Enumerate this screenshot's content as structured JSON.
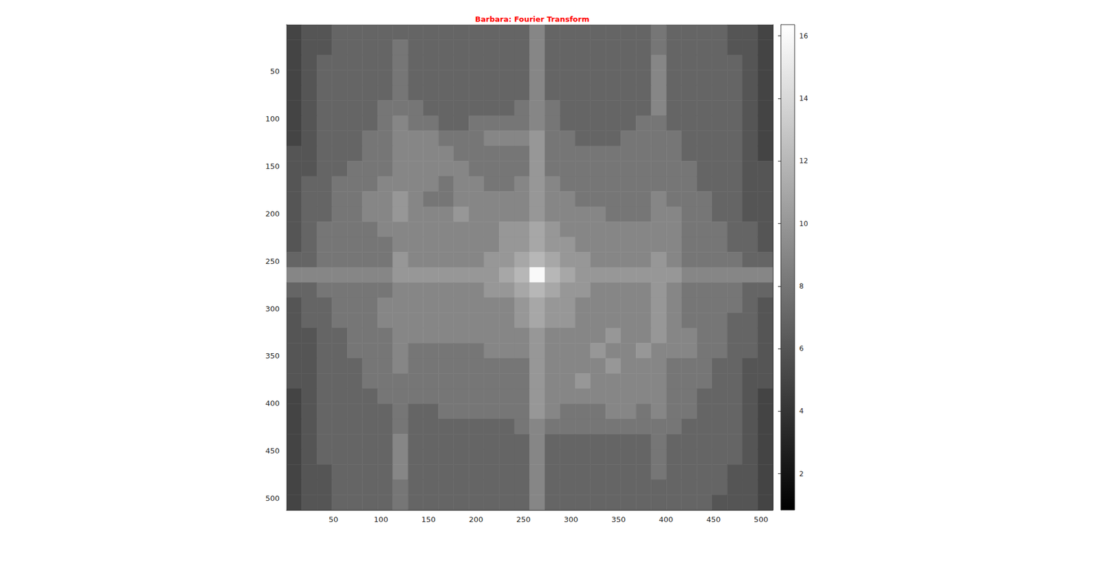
{
  "chart_data": {
    "type": "heatmap",
    "title": "Barbara: Fourier Transform",
    "color": "gray",
    "xlim": [
      0.5,
      512.5
    ],
    "ylim": [
      0.5,
      512.5
    ],
    "xticks": [
      50,
      100,
      150,
      200,
      250,
      300,
      350,
      400,
      450,
      500
    ],
    "yticks": [
      50,
      100,
      150,
      200,
      250,
      300,
      350,
      400,
      450,
      500
    ],
    "x_bins": [
      0.5,
      16.5,
      32.5,
      48.5,
      64.5,
      80.5,
      96.5,
      112.5,
      128.5,
      144.5,
      160.5,
      176.5,
      192.5,
      208.5,
      224.5,
      240.5,
      256.5,
      272.5,
      288.5,
      304.5,
      320.5,
      336.5,
      352.5,
      368.5,
      384.5,
      400.5,
      416.5,
      432.5,
      448.5,
      464.5,
      480.5,
      496.5,
      512.5
    ],
    "y_bins": [
      0.5,
      16.5,
      32.5,
      48.5,
      64.5,
      80.5,
      96.5,
      112.5,
      128.5,
      144.5,
      160.5,
      176.5,
      192.5,
      208.5,
      224.5,
      240.5,
      256.5,
      272.5,
      288.5,
      304.5,
      320.5,
      336.5,
      352.5,
      368.5,
      384.5,
      400.5,
      416.5,
      432.5,
      448.5,
      464.5,
      480.5,
      496.5,
      512.5
    ],
    "color_range": [
      0.84,
      16.36
    ],
    "color_ticks": [
      2,
      4,
      6,
      8,
      10,
      12,
      14,
      16
    ],
    "cells": [
      [
        5,
        6,
        6,
        7,
        7,
        7,
        7,
        7,
        7,
        7,
        7,
        7,
        7,
        7,
        7,
        7,
        9,
        7,
        7,
        7,
        7,
        7,
        7,
        7,
        8,
        7,
        7,
        7,
        7,
        6,
        6,
        5
      ],
      [
        5,
        6,
        6,
        7,
        7,
        7,
        7,
        8,
        7,
        7,
        7,
        7,
        7,
        7,
        7,
        7,
        9,
        7,
        7,
        7,
        7,
        7,
        7,
        7,
        8,
        7,
        7,
        7,
        7,
        6,
        6,
        5
      ],
      [
        5,
        6,
        7,
        7,
        7,
        7,
        7,
        8,
        7,
        7,
        7,
        7,
        7,
        7,
        7,
        7,
        9,
        7,
        7,
        7,
        7,
        7,
        7,
        7,
        9,
        7,
        7,
        7,
        7,
        7,
        6,
        5
      ],
      [
        5,
        6,
        7,
        7,
        7,
        7,
        7,
        8,
        7,
        7,
        7,
        7,
        7,
        7,
        7,
        7,
        9,
        7,
        7,
        7,
        7,
        7,
        7,
        7,
        9,
        7,
        7,
        7,
        7,
        7,
        6,
        5
      ],
      [
        5,
        6,
        7,
        7,
        7,
        7,
        7,
        8,
        7,
        7,
        7,
        7,
        7,
        7,
        7,
        7,
        9,
        7,
        7,
        7,
        7,
        7,
        7,
        7,
        9,
        7,
        7,
        7,
        7,
        7,
        6,
        5
      ],
      [
        5,
        6,
        7,
        7,
        7,
        7,
        8,
        8,
        8,
        7,
        7,
        7,
        7,
        7,
        7,
        8,
        9,
        8,
        7,
        7,
        7,
        7,
        7,
        7,
        9,
        7,
        7,
        7,
        7,
        7,
        6,
        5
      ],
      [
        5,
        6,
        7,
        7,
        7,
        7,
        8,
        9,
        8,
        8,
        7,
        7,
        8,
        8,
        8,
        8,
        9,
        8,
        7,
        7,
        7,
        7,
        7,
        8,
        8,
        7,
        7,
        7,
        7,
        7,
        6,
        5
      ],
      [
        5,
        6,
        7,
        7,
        7,
        8,
        8,
        9,
        9,
        9,
        8,
        8,
        8,
        9,
        9,
        9,
        10,
        8,
        8,
        7,
        7,
        7,
        8,
        8,
        8,
        8,
        7,
        7,
        7,
        7,
        6,
        5
      ],
      [
        6,
        6,
        7,
        7,
        7,
        8,
        8,
        9,
        9,
        9,
        9,
        8,
        8,
        8,
        8,
        8,
        10,
        8,
        8,
        8,
        8,
        8,
        8,
        8,
        8,
        8,
        7,
        7,
        7,
        7,
        6,
        5
      ],
      [
        6,
        6,
        7,
        7,
        8,
        8,
        8,
        9,
        9,
        9,
        9,
        9,
        8,
        8,
        8,
        8,
        10,
        8,
        8,
        8,
        8,
        8,
        8,
        8,
        8,
        8,
        8,
        7,
        7,
        7,
        6,
        6
      ],
      [
        6,
        7,
        7,
        8,
        8,
        8,
        9,
        9,
        9,
        9,
        8,
        9,
        9,
        8,
        8,
        9,
        10,
        9,
        8,
        8,
        8,
        8,
        8,
        8,
        8,
        8,
        8,
        7,
        7,
        7,
        6,
        6
      ],
      [
        6,
        7,
        7,
        8,
        8,
        9,
        9,
        10,
        9,
        8,
        8,
        9,
        9,
        9,
        9,
        9,
        10,
        9,
        9,
        8,
        8,
        8,
        8,
        8,
        9,
        8,
        8,
        8,
        7,
        7,
        6,
        6
      ],
      [
        6,
        7,
        7,
        8,
        8,
        9,
        9,
        10,
        9,
        9,
        9,
        10,
        9,
        9,
        9,
        9,
        10,
        9,
        9,
        9,
        9,
        8,
        8,
        8,
        9,
        9,
        8,
        8,
        7,
        7,
        6,
        6
      ],
      [
        6,
        7,
        8,
        8,
        8,
        8,
        9,
        9,
        9,
        9,
        9,
        9,
        9,
        9,
        10,
        10,
        11,
        10,
        9,
        9,
        9,
        9,
        9,
        9,
        9,
        9,
        8,
        8,
        8,
        7,
        7,
        6
      ],
      [
        6,
        7,
        8,
        8,
        8,
        8,
        8,
        9,
        9,
        9,
        9,
        9,
        9,
        9,
        10,
        10,
        11,
        10,
        10,
        9,
        9,
        9,
        9,
        9,
        9,
        9,
        8,
        8,
        8,
        7,
        7,
        6
      ],
      [
        7,
        7,
        8,
        8,
        8,
        8,
        8,
        10,
        9,
        9,
        9,
        9,
        9,
        10,
        10,
        11,
        12,
        11,
        10,
        10,
        9,
        9,
        9,
        9,
        10,
        9,
        8,
        8,
        8,
        8,
        7,
        7
      ],
      [
        9,
        9,
        9,
        9,
        9,
        9,
        9,
        10,
        10,
        10,
        10,
        10,
        10,
        10,
        11,
        12,
        16,
        12,
        11,
        10,
        10,
        10,
        10,
        10,
        10,
        10,
        9,
        9,
        9,
        9,
        9,
        9
      ],
      [
        7,
        7,
        8,
        8,
        8,
        8,
        8,
        9,
        9,
        9,
        9,
        9,
        9,
        10,
        10,
        11,
        12,
        11,
        10,
        10,
        9,
        9,
        9,
        9,
        10,
        9,
        8,
        8,
        8,
        8,
        7,
        7
      ],
      [
        6,
        7,
        7,
        8,
        8,
        8,
        9,
        9,
        9,
        9,
        9,
        9,
        9,
        9,
        9,
        10,
        11,
        10,
        10,
        9,
        9,
        9,
        9,
        9,
        10,
        9,
        8,
        8,
        8,
        8,
        7,
        6
      ],
      [
        6,
        7,
        7,
        8,
        8,
        8,
        9,
        9,
        9,
        9,
        9,
        9,
        9,
        9,
        9,
        10,
        11,
        10,
        10,
        9,
        9,
        9,
        9,
        9,
        10,
        9,
        8,
        8,
        8,
        7,
        7,
        6
      ],
      [
        6,
        6,
        7,
        7,
        8,
        8,
        8,
        9,
        9,
        9,
        9,
        9,
        9,
        9,
        9,
        9,
        10,
        9,
        9,
        9,
        9,
        10,
        9,
        9,
        10,
        9,
        9,
        8,
        8,
        7,
        7,
        6
      ],
      [
        6,
        6,
        7,
        7,
        8,
        8,
        8,
        9,
        8,
        8,
        8,
        8,
        8,
        9,
        9,
        9,
        10,
        9,
        9,
        9,
        10,
        9,
        9,
        10,
        9,
        9,
        9,
        8,
        8,
        7,
        7,
        6
      ],
      [
        6,
        6,
        7,
        7,
        7,
        8,
        8,
        9,
        8,
        8,
        8,
        8,
        8,
        8,
        8,
        8,
        10,
        9,
        9,
        9,
        9,
        10,
        9,
        9,
        9,
        8,
        8,
        8,
        7,
        7,
        6,
        6
      ],
      [
        6,
        6,
        7,
        7,
        7,
        8,
        8,
        8,
        8,
        8,
        8,
        8,
        8,
        8,
        8,
        8,
        10,
        9,
        9,
        10,
        9,
        9,
        9,
        9,
        9,
        8,
        8,
        8,
        7,
        7,
        6,
        6
      ],
      [
        5,
        6,
        7,
        7,
        7,
        7,
        8,
        8,
        8,
        8,
        8,
        8,
        8,
        8,
        8,
        8,
        10,
        9,
        9,
        9,
        9,
        9,
        9,
        9,
        9,
        8,
        8,
        7,
        7,
        7,
        6,
        5
      ],
      [
        5,
        6,
        7,
        7,
        7,
        7,
        7,
        8,
        7,
        7,
        8,
        8,
        8,
        8,
        8,
        8,
        10,
        9,
        8,
        8,
        8,
        9,
        9,
        8,
        9,
        8,
        8,
        7,
        7,
        7,
        6,
        5
      ],
      [
        5,
        6,
        7,
        7,
        7,
        7,
        7,
        8,
        7,
        7,
        7,
        7,
        7,
        7,
        7,
        8,
        9,
        8,
        8,
        8,
        8,
        8,
        8,
        8,
        8,
        8,
        7,
        7,
        7,
        7,
        6,
        5
      ],
      [
        5,
        6,
        7,
        7,
        7,
        7,
        7,
        9,
        7,
        7,
        7,
        7,
        7,
        7,
        7,
        7,
        9,
        7,
        7,
        7,
        7,
        7,
        7,
        7,
        8,
        7,
        7,
        7,
        7,
        7,
        6,
        5
      ],
      [
        5,
        6,
        7,
        7,
        7,
        7,
        7,
        9,
        7,
        7,
        7,
        7,
        7,
        7,
        7,
        7,
        9,
        7,
        7,
        7,
        7,
        7,
        7,
        7,
        8,
        7,
        7,
        7,
        7,
        7,
        6,
        5
      ],
      [
        5,
        6,
        6,
        7,
        7,
        7,
        7,
        9,
        7,
        7,
        7,
        7,
        7,
        7,
        7,
        7,
        9,
        7,
        7,
        7,
        7,
        7,
        7,
        7,
        8,
        7,
        7,
        7,
        7,
        6,
        6,
        5
      ],
      [
        5,
        6,
        6,
        7,
        7,
        7,
        7,
        8,
        7,
        7,
        7,
        7,
        7,
        7,
        7,
        7,
        9,
        7,
        7,
        7,
        7,
        7,
        7,
        7,
        7,
        7,
        7,
        7,
        7,
        6,
        6,
        5
      ],
      [
        5,
        6,
        6,
        7,
        7,
        7,
        7,
        8,
        7,
        7,
        7,
        7,
        7,
        7,
        7,
        7,
        9,
        7,
        7,
        7,
        7,
        7,
        7,
        7,
        7,
        7,
        7,
        7,
        6,
        6,
        6,
        5
      ]
    ]
  }
}
